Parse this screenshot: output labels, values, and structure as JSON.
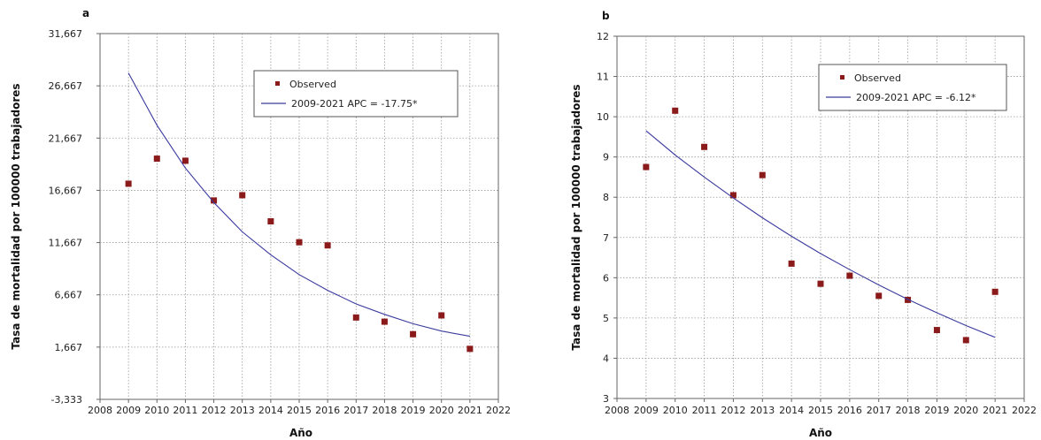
{
  "colors": {
    "observed": "#8b1a1a",
    "fit": "#3a3a9e",
    "grid": "#9a9a9a"
  },
  "chart_data": [
    {
      "panel": "a",
      "type": "scatter",
      "xlabel": "Año",
      "ylabel": "Tasa de mortalidad por 100000 trabajadores",
      "xlim": [
        2008,
        2022
      ],
      "ylim": [
        -3.333,
        31.667
      ],
      "xticks": [
        "2008",
        "2009",
        "2010",
        "2011",
        "2012",
        "2013",
        "2014",
        "2015",
        "2016",
        "2017",
        "2018",
        "2019",
        "2020",
        "2021",
        "2022"
      ],
      "yticks": [
        "-3,333",
        "1,667",
        "6,667",
        "11,667",
        "16,667",
        "21,667",
        "26,667",
        "31,667"
      ],
      "grid": true,
      "legend_position": "top-right",
      "series": [
        {
          "name": "Observed",
          "kind": "points",
          "x": [
            2009,
            2010,
            2011,
            2012,
            2013,
            2014,
            2015,
            2016,
            2017,
            2018,
            2019,
            2020,
            2021
          ],
          "y": [
            17.3,
            19.7,
            19.5,
            15.7,
            16.2,
            13.7,
            11.7,
            11.4,
            4.5,
            4.1,
            2.9,
            4.7,
            1.5
          ]
        },
        {
          "name": "2009-2021 APC  = -17.75*",
          "kind": "line",
          "x": [
            2009,
            2010,
            2011,
            2012,
            2013,
            2014,
            2015,
            2016,
            2017,
            2018,
            2019,
            2020,
            2021
          ],
          "y": [
            27.9,
            22.9,
            18.8,
            15.5,
            12.7,
            10.5,
            8.6,
            7.1,
            5.8,
            4.8,
            3.9,
            3.2,
            2.7
          ]
        }
      ]
    },
    {
      "panel": "b",
      "type": "scatter",
      "xlabel": "Año",
      "ylabel": "Tasa de mortalidad por 100000 trabajadores",
      "xlim": [
        2008,
        2022
      ],
      "ylim": [
        3,
        12
      ],
      "xticks": [
        "2008",
        "2009",
        "2010",
        "2011",
        "2012",
        "2013",
        "2014",
        "2015",
        "2016",
        "2017",
        "2018",
        "2019",
        "2020",
        "2021",
        "2022"
      ],
      "yticks": [
        "3",
        "4",
        "5",
        "6",
        "7",
        "8",
        "9",
        "10",
        "11",
        "12"
      ],
      "grid": true,
      "legend_position": "top-right",
      "series": [
        {
          "name": "Observed",
          "kind": "points",
          "x": [
            2009,
            2010,
            2011,
            2012,
            2013,
            2014,
            2015,
            2016,
            2017,
            2018,
            2019,
            2020,
            2021
          ],
          "y": [
            8.75,
            10.15,
            9.25,
            8.05,
            8.55,
            6.35,
            5.85,
            6.05,
            5.55,
            5.45,
            4.7,
            4.45,
            5.65
          ]
        },
        {
          "name": "2009-2021 APC  = -6.12*",
          "kind": "line",
          "x": [
            2009,
            2010,
            2011,
            2012,
            2013,
            2014,
            2015,
            2016,
            2017,
            2018,
            2019,
            2020,
            2021
          ],
          "y": [
            9.65,
            9.05,
            8.5,
            7.98,
            7.49,
            7.03,
            6.6,
            6.2,
            5.82,
            5.46,
            5.13,
            4.81,
            4.52
          ]
        }
      ]
    }
  ]
}
